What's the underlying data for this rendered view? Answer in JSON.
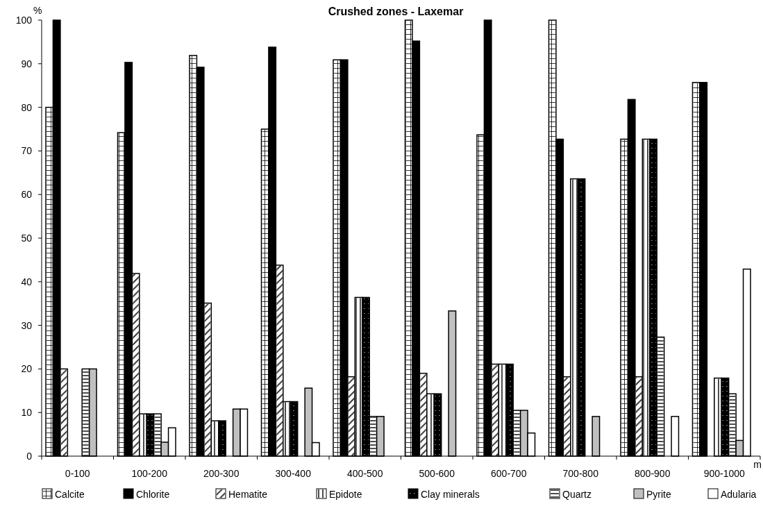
{
  "chart_data": {
    "type": "bar",
    "title": "Crushed zones - Laxemar",
    "xlabel": "m",
    "ylabel": "%",
    "categories": [
      "0-100",
      "100-200",
      "200-300",
      "300-400",
      "400-500",
      "500-600",
      "600-700",
      "700-800",
      "800-900",
      "900-1000"
    ],
    "series": [
      {
        "name": "Calcite",
        "color": "#ffffff",
        "values": [
          80,
          74.2,
          91.9,
          75,
          90.9,
          100,
          73.7,
          100,
          72.7,
          85.7
        ]
      },
      {
        "name": "Chlorite",
        "color": "#000000",
        "values": [
          100,
          90.3,
          89.2,
          93.8,
          90.9,
          95.2,
          100,
          72.7,
          81.8,
          85.7
        ]
      },
      {
        "name": "Hematite",
        "color": "#ffffff",
        "values": [
          20,
          41.9,
          35.1,
          43.8,
          18.2,
          19,
          21.1,
          18.2,
          18.2,
          0
        ]
      },
      {
        "name": "Epidote",
        "color": "#ffffff",
        "values": [
          0,
          9.7,
          8.1,
          12.5,
          36.4,
          14.3,
          21.1,
          63.6,
          72.7,
          17.9
        ]
      },
      {
        "name": "Clay minerals",
        "color": "#000000",
        "values": [
          0,
          9.7,
          8.1,
          12.5,
          36.4,
          14.3,
          21.1,
          63.6,
          72.7,
          17.9
        ]
      },
      {
        "name": "Quartz",
        "color": "#ffffff",
        "values": [
          20,
          9.7,
          0,
          0,
          9.1,
          0,
          10.5,
          0,
          27.3,
          14.3
        ]
      },
      {
        "name": "Pyrite",
        "color": "#c0c0c0",
        "values": [
          20,
          3.2,
          10.8,
          15.6,
          9.1,
          33.3,
          10.5,
          9.1,
          0,
          3.6
        ]
      },
      {
        "name": "Adularia",
        "color": "#ffffff",
        "values": [
          0,
          6.5,
          10.8,
          3.1,
          0,
          0,
          5.3,
          0,
          9.1,
          42.9
        ]
      }
    ],
    "ylim": [
      0,
      100
    ],
    "yticks": [
      0,
      10,
      20,
      30,
      40,
      50,
      60,
      70,
      80,
      90,
      100
    ],
    "grid": false,
    "legend": "bottom"
  }
}
